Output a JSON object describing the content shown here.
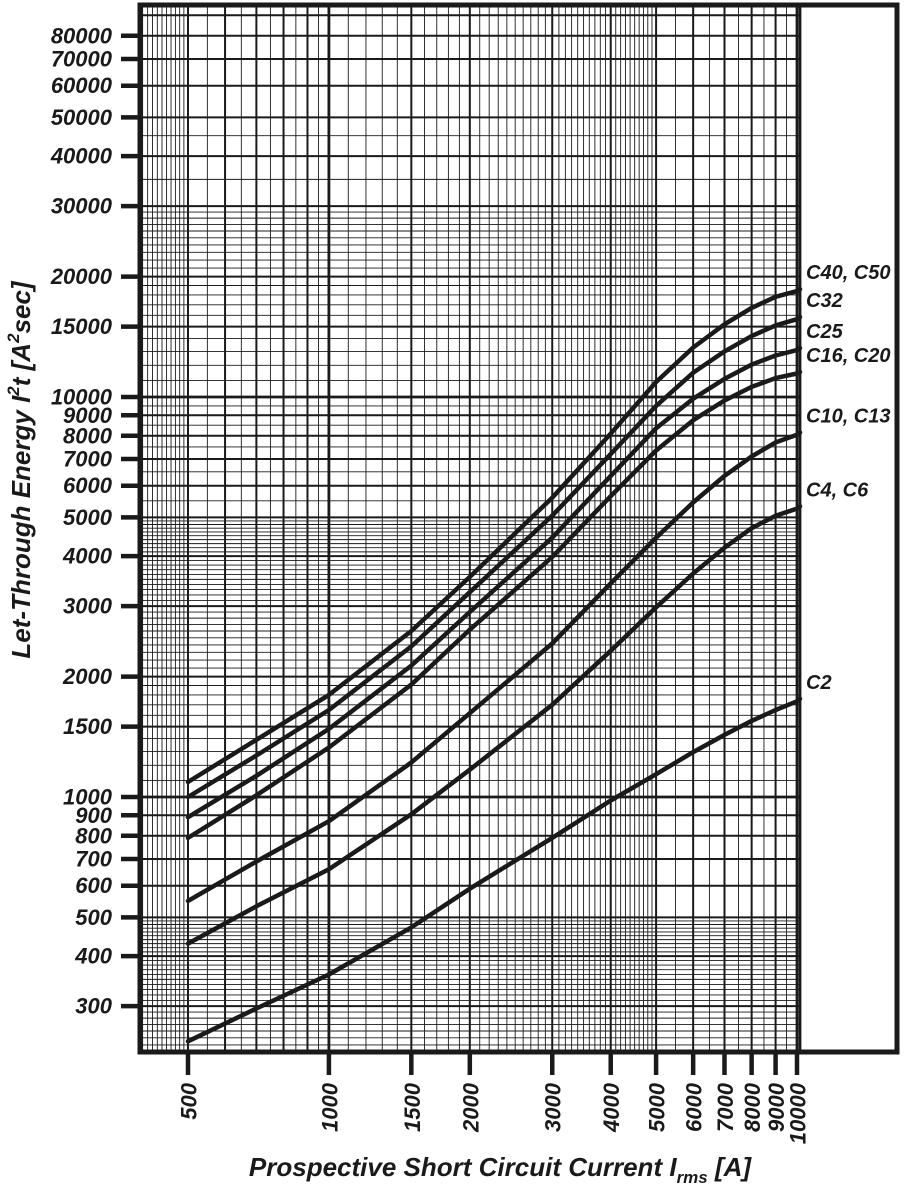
{
  "page": {
    "background": "#ffffff",
    "ink": "#1a1a1a"
  },
  "chart_data": {
    "type": "line",
    "title": "",
    "x_axis": {
      "label_prefix": "Prospective Short Circuit Current I",
      "label_sub": "rms",
      "label_suffix": " [A]",
      "scale": "log",
      "range": [
        395,
        10150
      ],
      "tick_labels": [
        500,
        1000,
        1500,
        2000,
        3000,
        4000,
        5000,
        6000,
        7000,
        8000,
        9000,
        10000
      ],
      "grid_major": [
        1000,
        10000
      ],
      "grid_medium": [
        500,
        600,
        700,
        800,
        900,
        1500,
        2000,
        3000,
        4000,
        5000,
        6000,
        7000,
        8000,
        9000
      ],
      "grid_minor": [
        400,
        410,
        420,
        430,
        440,
        450,
        460,
        470,
        480,
        490,
        550,
        650,
        750,
        850,
        950,
        1100,
        1200,
        1300,
        1400,
        1600,
        1700,
        1800,
        1900,
        2100,
        2200,
        2300,
        2400,
        2500,
        2600,
        2700,
        2800,
        2900,
        3100,
        3200,
        3300,
        3400,
        3500,
        3600,
        3700,
        3800,
        3900,
        4100,
        4200,
        4300,
        4400,
        4500,
        4600,
        4700,
        4800,
        4900,
        5500,
        6500,
        7500,
        8500,
        9500
      ]
    },
    "y_axis": {
      "label_parts": [
        "Let-Through Energy I",
        "2",
        "t [A",
        "2",
        "sec]"
      ],
      "scale": "log",
      "range": [
        230,
        95500
      ],
      "tick_labels": [
        80000,
        70000,
        60000,
        50000,
        40000,
        30000,
        20000,
        15000,
        10000,
        9000,
        8000,
        7000,
        6000,
        5000,
        4000,
        3000,
        2000,
        1500,
        1000,
        900,
        800,
        700,
        600,
        500,
        400,
        300
      ],
      "grid_major": [
        1000,
        10000
      ],
      "grid_medium": [
        300,
        400,
        500,
        600,
        700,
        800,
        900,
        1500,
        2000,
        3000,
        4000,
        5000,
        6000,
        7000,
        8000,
        9000,
        15000,
        20000,
        30000,
        40000,
        50000,
        60000,
        70000,
        80000,
        90000
      ],
      "grid_minor": [
        230,
        240,
        250,
        260,
        270,
        280,
        290,
        310,
        320,
        330,
        340,
        350,
        360,
        370,
        380,
        390,
        410,
        420,
        430,
        440,
        450,
        460,
        470,
        480,
        490,
        1100,
        1200,
        1300,
        1400,
        1600,
        1700,
        1800,
        1900,
        2100,
        2200,
        2300,
        2400,
        2500,
        2600,
        2700,
        2800,
        2900,
        3100,
        3200,
        3300,
        3400,
        3500,
        3600,
        3700,
        3800,
        3900,
        4100,
        4200,
        4300,
        4400,
        4500,
        4600,
        4700,
        4800,
        4900,
        5500,
        6500,
        7500,
        8500,
        9500,
        11000,
        12000,
        13000,
        14000,
        16000,
        17000,
        18000,
        19000,
        21000,
        22000,
        23000,
        24000,
        25000,
        26000,
        27000,
        28000,
        29000,
        35000,
        45000
      ]
    },
    "x_shared": [
      500,
      700,
      1000,
      1500,
      2000,
      3000,
      4000,
      5000,
      6000,
      7000,
      8000,
      9000,
      10000,
      10150
    ],
    "series": [
      {
        "name": "C40, C50",
        "values": [
          1090,
          1390,
          1800,
          2600,
          3550,
          5600,
          8100,
          10900,
          13300,
          15200,
          16700,
          17800,
          18400,
          18600
        ]
      },
      {
        "name": "C32",
        "values": [
          1000,
          1270,
          1650,
          2380,
          3250,
          5050,
          7200,
          9500,
          11500,
          13000,
          14200,
          15100,
          15650,
          15850
        ]
      },
      {
        "name": "C25",
        "values": [
          890,
          1130,
          1480,
          2130,
          2900,
          4450,
          6350,
          8350,
          9900,
          11100,
          12050,
          12700,
          13100,
          13250
        ]
      },
      {
        "name": "C16, C20",
        "values": [
          790,
          1010,
          1330,
          1910,
          2620,
          3980,
          5650,
          7350,
          8750,
          9800,
          10600,
          11150,
          11450,
          11550
        ]
      },
      {
        "name": "C10, C13",
        "values": [
          550,
          690,
          870,
          1220,
          1620,
          2420,
          3420,
          4450,
          5450,
          6350,
          7100,
          7700,
          8050,
          8150
        ]
      },
      {
        "name": "C4, C6",
        "values": [
          430,
          533,
          660,
          905,
          1170,
          1700,
          2320,
          2980,
          3620,
          4200,
          4700,
          5050,
          5260,
          5330
        ]
      },
      {
        "name": "C2",
        "values": [
          245,
          296,
          360,
          472,
          590,
          790,
          980,
          1140,
          1295,
          1430,
          1550,
          1650,
          1735,
          1760
        ]
      }
    ]
  }
}
